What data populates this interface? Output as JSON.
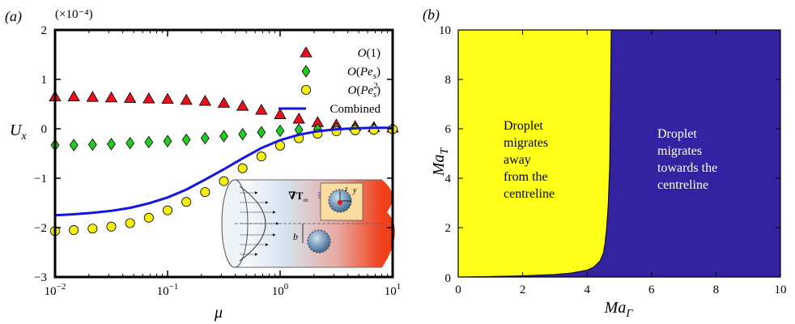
{
  "chart_data": [
    {
      "type": "scatter",
      "panel_label": "(a)",
      "xlabel": "μ",
      "ylabel": "U_x",
      "multiplier_label": "(×10⁻⁴)",
      "xscale": "log",
      "xlim": [
        0.01,
        10
      ],
      "ylim": [
        -3,
        2
      ],
      "x_tick_labels": [
        {
          "value": 0.01,
          "base": "10",
          "exp": "−2"
        },
        {
          "value": 0.1,
          "base": "10",
          "exp": "−1"
        },
        {
          "value": 1,
          "base": "10",
          "exp": "0"
        },
        {
          "value": 10,
          "base": "10",
          "exp": "1"
        }
      ],
      "y_ticks": [
        -3,
        -2,
        -1,
        0,
        1,
        2
      ],
      "y_tick_labels": [
        "−3",
        "−2",
        "−1",
        "0",
        "1",
        "2"
      ],
      "legend_position": "top-right",
      "x": [
        0.01,
        0.01468,
        0.02154,
        0.03162,
        0.04642,
        0.06813,
        0.1,
        0.1468,
        0.2154,
        0.3162,
        0.4642,
        0.6813,
        1.0,
        1.468,
        2.154,
        3.162,
        4.642,
        6.813,
        10.0
      ],
      "series": [
        {
          "name": "O(1)",
          "name_parts": {
            "base": "O(1)"
          },
          "marker": "triangle",
          "color": "#e8101c",
          "values": [
            0.65,
            0.65,
            0.64,
            0.63,
            0.62,
            0.61,
            0.6,
            0.58,
            0.56,
            0.52,
            0.46,
            0.38,
            0.29,
            0.2,
            0.13,
            0.08,
            0.05,
            0.03,
            0.02
          ]
        },
        {
          "name": "O(Pe_s)",
          "name_parts": {
            "base": "O(Pe",
            "sub": "s",
            "sup": "",
            "tail": ")"
          },
          "marker": "diamond",
          "color": "#22cc22",
          "values": [
            -0.33,
            -0.33,
            -0.32,
            -0.31,
            -0.29,
            -0.27,
            -0.25,
            -0.22,
            -0.19,
            -0.15,
            -0.11,
            -0.07,
            -0.04,
            -0.02,
            -0.01,
            0.0,
            0.0,
            0.0,
            0.0
          ]
        },
        {
          "name": "O(Pe_s^2)",
          "name_parts": {
            "base": "O(Pe",
            "sub": "s",
            "sup": "2",
            "tail": ")"
          },
          "marker": "circle",
          "color": "#f5ef10",
          "values": [
            -2.07,
            -2.05,
            -2.02,
            -1.98,
            -1.91,
            -1.8,
            -1.65,
            -1.48,
            -1.28,
            -1.06,
            -0.8,
            -0.56,
            -0.34,
            -0.19,
            -0.1,
            -0.05,
            -0.03,
            -0.02,
            -0.01
          ]
        },
        {
          "name": "Combined",
          "name_parts": {
            "base": "Combined"
          },
          "marker": "line",
          "color": "#1515e0",
          "x": [
            0.01,
            0.0147,
            0.0215,
            0.0316,
            0.0464,
            0.0681,
            0.1,
            0.147,
            0.215,
            0.316,
            0.464,
            0.681,
            1.0,
            1.47,
            2.15,
            3.16,
            4.64,
            6.81,
            10.0
          ],
          "values": [
            -1.75,
            -1.73,
            -1.7,
            -1.66,
            -1.6,
            -1.51,
            -1.39,
            -1.23,
            -1.03,
            -0.82,
            -0.6,
            -0.39,
            -0.23,
            -0.12,
            -0.05,
            -0.01,
            0.01,
            0.02,
            0.02
          ]
        }
      ],
      "inset": {
        "labels": {
          "grad": "∇T",
          "grad_sub": "∞",
          "b": "b",
          "y": "y",
          "z": "z"
        }
      }
    },
    {
      "type": "area",
      "panel_label": "(b)",
      "xlabel": "Ma_Γ",
      "xlabel_parts": {
        "base": "Ma",
        "sub": "Γ"
      },
      "ylabel": "Ma_T",
      "ylabel_parts": {
        "base": "Ma",
        "sub": "T"
      },
      "xlim": [
        0,
        10
      ],
      "ylim": [
        0,
        10
      ],
      "x_ticks": [
        0,
        2,
        4,
        6,
        8,
        10
      ],
      "y_ticks": [
        2,
        4,
        6,
        8,
        10
      ],
      "origin_label": "0",
      "boundary": {
        "x": [
          0.0,
          1.0,
          2.0,
          3.0,
          3.5,
          4.0,
          4.2,
          4.4,
          4.5,
          4.55,
          4.6,
          4.65,
          4.7,
          4.72,
          4.75
        ],
        "y": [
          0.0,
          0.02,
          0.05,
          0.1,
          0.16,
          0.28,
          0.4,
          0.65,
          0.95,
          1.3,
          1.9,
          2.8,
          4.5,
          6.5,
          10.0
        ]
      },
      "regions": [
        {
          "name": "away",
          "color": "#ffff1a",
          "text": [
            "Droplet",
            "migrates",
            "away",
            "from the",
            "centreline"
          ]
        },
        {
          "name": "towards",
          "color": "#3323a0",
          "text": [
            "Droplet",
            "migrates",
            "towards the",
            "centreline"
          ]
        }
      ]
    }
  ]
}
